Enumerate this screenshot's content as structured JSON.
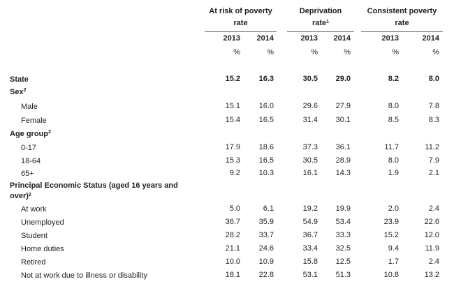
{
  "headers": {
    "groups": [
      {
        "line1": "At risk of poverty",
        "line2": "rate",
        "sup": ""
      },
      {
        "line1": "Deprivation",
        "line2": "rate",
        "sup": "1"
      },
      {
        "line1": "Consistent poverty",
        "line2": "rate",
        "sup": ""
      }
    ],
    "years": [
      "2013",
      "2014",
      "2013",
      "2014",
      "2013",
      "2014"
    ],
    "units": [
      "%",
      "%",
      "%",
      "%",
      "%",
      "%"
    ]
  },
  "rows": [
    {
      "label": "State",
      "sup": "",
      "values": [
        "15.2",
        "16.3",
        "30.5",
        "29.0",
        "8.2",
        "8.0"
      ]
    },
    {
      "label": "Sex",
      "sup": "2",
      "values": []
    },
    {
      "label": "Male",
      "sup": "",
      "values": [
        "15.1",
        "16.0",
        "29.6",
        "27.9",
        "8.0",
        "7.8"
      ]
    },
    {
      "label": "Female",
      "sup": "",
      "values": [
        "15.4",
        "16.5",
        "31.4",
        "30.1",
        "8.5",
        "8.3"
      ]
    },
    {
      "label": "Age group",
      "sup": "2",
      "values": []
    },
    {
      "label": "0-17",
      "sup": "",
      "values": [
        "17.9",
        "18.6",
        "37.3",
        "36.1",
        "11.7",
        "11.2"
      ]
    },
    {
      "label": "18-64",
      "sup": "",
      "values": [
        "15.3",
        "16.5",
        "30.5",
        "28.9",
        "8.0",
        "7.9"
      ]
    },
    {
      "label": "65+",
      "sup": "",
      "values": [
        "9.2",
        "10.3",
        "16.1",
        "14.3",
        "1.9",
        "2.1"
      ]
    },
    {
      "label": "Principal Economic Status (aged 16 years and",
      "label2": "over)",
      "sup": "2",
      "values": []
    },
    {
      "label": "At work",
      "sup": "",
      "values": [
        "5.0",
        "6.1",
        "19.2",
        "19.9",
        "2.0",
        "2.4"
      ]
    },
    {
      "label": "Unemployed",
      "sup": "",
      "values": [
        "36.7",
        "35.9",
        "54.9",
        "53.4",
        "23.9",
        "22.6"
      ]
    },
    {
      "label": "Student",
      "sup": "",
      "values": [
        "28.2",
        "33.7",
        "36.7",
        "33.3",
        "15.2",
        "12.0"
      ]
    },
    {
      "label": "Home duties",
      "sup": "",
      "values": [
        "21.1",
        "24.6",
        "33.4",
        "32.5",
        "9.4",
        "11.9"
      ]
    },
    {
      "label": "Retired",
      "sup": "",
      "values": [
        "10.0",
        "10.9",
        "15.8",
        "12.5",
        "1.7",
        "2.4"
      ]
    },
    {
      "label": "Not at work due to illness or disability",
      "sup": "",
      "values": [
        "18.1",
        "22.8",
        "53.1",
        "51.3",
        "10.8",
        "13.2"
      ]
    }
  ]
}
